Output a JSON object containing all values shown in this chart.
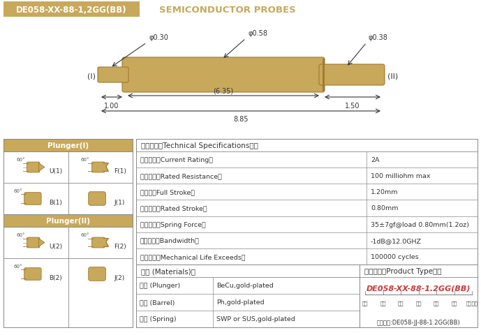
{
  "title_box_text": "DE058-XX-88-1,2GG(BB)",
  "title_box_bg": "#C8A85A",
  "title_box_text_color": "#FFFFFF",
  "subtitle_text": "SEMICONDUCTOR PROBES",
  "subtitle_color": "#C8A85A",
  "bg_color": "#FFFFFF",
  "probe_color": "#C8A85A",
  "probe_dark": "#A07830",
  "dim_color": "#333333",
  "header_bg": "#C8A85A",
  "border_color": "#888888",
  "table_text_color": "#333333",
  "specs": [
    [
      "额定电流（Current Rating）",
      "2A"
    ],
    [
      "额定电阶（Rated Resistance）",
      "100 milliohm max"
    ],
    [
      "满行程（Full Stroke）",
      "1.20mm"
    ],
    [
      "额定行程（Rated Stroke）",
      "0.80mm"
    ],
    [
      "额定弹力（Spring Force）",
      "35±7gf@load 0.80mm(1.2oz)"
    ],
    [
      "频率带宽（Bandwidth）",
      "-1dB@12.0GHZ"
    ],
    [
      "测试寿命（Mechanical Life Exceeds）",
      "100000 cycles"
    ]
  ],
  "specs_header": "技术要求（Technical Specifications）：",
  "materials_header": "材质 (Materials)：",
  "materials": [
    [
      "针头 (Plunger)",
      "BeCu,gold-plated"
    ],
    [
      "针管 (Barrel)",
      "Ph,gold-plated"
    ],
    [
      "弹簧 (Spring)",
      "SWP or SUS,gold-plated"
    ]
  ],
  "product_type_title": "成品型号（Product Type）：",
  "product_code": "DE058-XX-88-1.2GG(BB)",
  "product_parts": [
    "系列",
    "规格",
    "头型",
    "行长",
    "弹力",
    "镀金",
    "针头材质"
  ],
  "order_example": "订购举例:DE058-JJ-88-1.2GG(BB)",
  "plunger1_title": "Plunger(I)",
  "plunger2_title": "Plunger(II)",
  "dim_phi030": "φ0.30",
  "dim_phi058": "φ0.58",
  "dim_phi038": "φ0.38",
  "dim_635": "(6.35)",
  "dim_100": "1.00",
  "dim_150": "1.50",
  "dim_885": "8.85",
  "label_I": "(I)",
  "label_II": "(II)"
}
